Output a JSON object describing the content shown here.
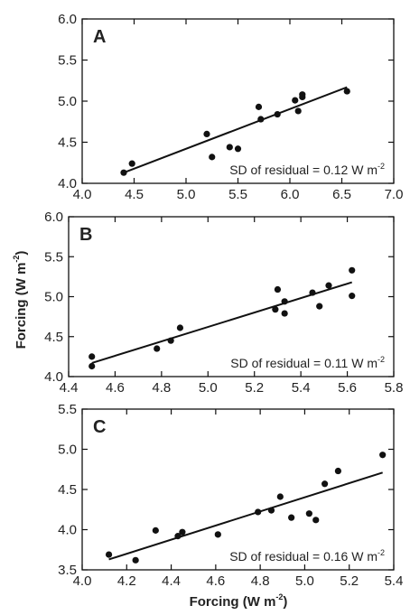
{
  "ylabel": {
    "text": "Forcing (W m",
    "sup": "-2",
    "close": ")"
  },
  "xlabel": {
    "text": "Forcing (W m",
    "sup": "-2",
    "close": ")"
  },
  "chart_data": [
    {
      "type": "scatter",
      "letter": "A",
      "annotation": {
        "text": "SD of residual = 0.12 W m",
        "sup": "-2"
      },
      "xlim": [
        4.0,
        7.0
      ],
      "ylim": [
        4.0,
        6.0
      ],
      "xticks": [
        "4.0",
        "4.5",
        "5.0",
        "5.5",
        "6.0",
        "6.5",
        "7.0"
      ],
      "yticks": [
        "4.0",
        "4.5",
        "5.0",
        "5.5",
        "6.0"
      ],
      "grid": false,
      "points": [
        [
          4.4,
          4.13
        ],
        [
          4.48,
          4.24
        ],
        [
          5.2,
          4.6
        ],
        [
          5.25,
          4.32
        ],
        [
          5.42,
          4.44
        ],
        [
          5.5,
          4.42
        ],
        [
          5.7,
          4.93
        ],
        [
          5.72,
          4.78
        ],
        [
          5.88,
          4.84
        ],
        [
          6.05,
          5.01
        ],
        [
          6.08,
          4.88
        ],
        [
          6.12,
          5.05
        ],
        [
          6.12,
          5.08
        ],
        [
          6.55,
          5.12
        ]
      ],
      "fit": {
        "x": [
          4.4,
          6.55
        ],
        "y": [
          4.13,
          5.17
        ]
      }
    },
    {
      "type": "scatter",
      "letter": "B",
      "annotation": {
        "text": "SD of residual = 0.11 W m",
        "sup": "-2"
      },
      "xlim": [
        4.4,
        5.8
      ],
      "ylim": [
        4.0,
        6.0
      ],
      "xticks": [
        "4.4",
        "4.6",
        "4.8",
        "5.0",
        "5.2",
        "5.4",
        "5.6",
        "5.8"
      ],
      "yticks": [
        "4.0",
        "4.5",
        "5.0",
        "5.5",
        "6.0"
      ],
      "grid": false,
      "points": [
        [
          4.5,
          4.25
        ],
        [
          4.5,
          4.13
        ],
        [
          4.78,
          4.35
        ],
        [
          4.84,
          4.45
        ],
        [
          4.88,
          4.61
        ],
        [
          5.29,
          4.84
        ],
        [
          5.3,
          5.09
        ],
        [
          5.33,
          4.94
        ],
        [
          5.33,
          4.79
        ],
        [
          5.45,
          5.05
        ],
        [
          5.48,
          4.88
        ],
        [
          5.52,
          5.14
        ],
        [
          5.62,
          5.33
        ],
        [
          5.62,
          5.01
        ]
      ],
      "fit": {
        "x": [
          4.5,
          5.62
        ],
        "y": [
          4.17,
          5.18
        ]
      }
    },
    {
      "type": "scatter",
      "letter": "C",
      "annotation": {
        "text": "SD of residual = 0.16 W m",
        "sup": "-2"
      },
      "xlim": [
        4.0,
        5.4
      ],
      "ylim": [
        3.5,
        5.5
      ],
      "xticks": [
        "4.0",
        "4.2",
        "4.4",
        "4.6",
        "4.8",
        "5.0",
        "5.2",
        "5.4"
      ],
      "yticks": [
        "3.5",
        "4.0",
        "4.5",
        "5.0",
        "5.5"
      ],
      "grid": false,
      "points": [
        [
          4.12,
          3.69
        ],
        [
          4.24,
          3.62
        ],
        [
          4.33,
          3.99
        ],
        [
          4.43,
          3.92
        ],
        [
          4.45,
          3.97
        ],
        [
          4.61,
          3.94
        ],
        [
          4.79,
          4.22
        ],
        [
          4.85,
          4.24
        ],
        [
          4.89,
          4.41
        ],
        [
          4.94,
          4.15
        ],
        [
          5.02,
          4.2
        ],
        [
          5.05,
          4.12
        ],
        [
          5.09,
          4.57
        ],
        [
          5.15,
          4.73
        ],
        [
          5.35,
          4.93
        ]
      ],
      "fit": {
        "x": [
          4.12,
          5.35
        ],
        "y": [
          3.63,
          4.71
        ]
      }
    }
  ]
}
